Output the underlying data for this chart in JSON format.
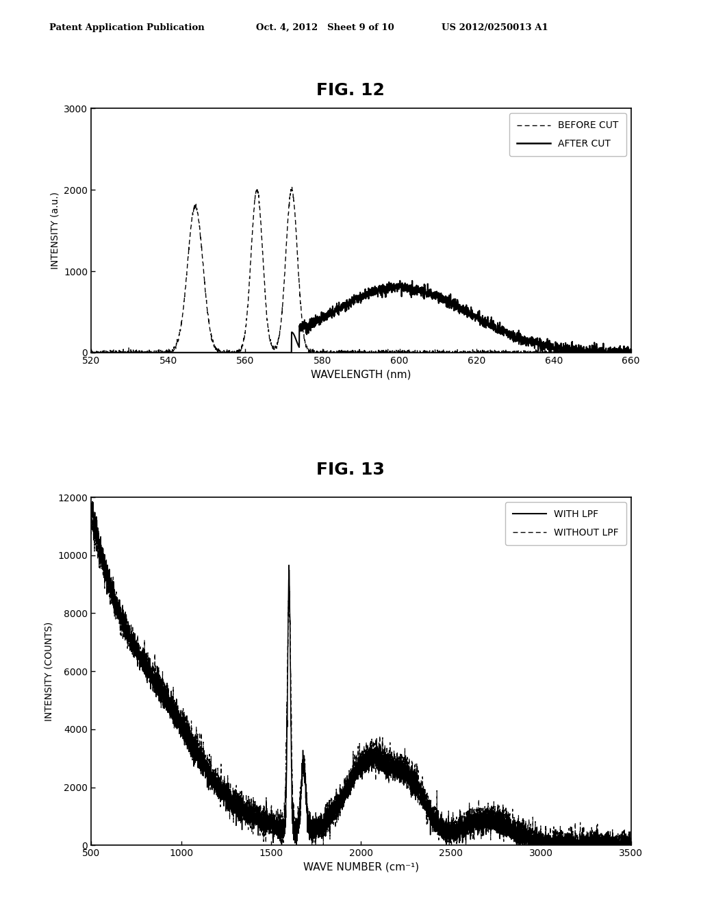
{
  "fig12_title": "FIG. 12",
  "fig13_title": "FIG. 13",
  "header_left": "Patent Application Publication",
  "header_mid": "Oct. 4, 2012   Sheet 9 of 10",
  "header_right": "US 2012/0250013 A1",
  "fig12": {
    "xlim": [
      520,
      660
    ],
    "ylim": [
      0,
      3000
    ],
    "xticks": [
      520,
      540,
      560,
      580,
      600,
      620,
      640,
      660
    ],
    "yticks": [
      0,
      1000,
      2000,
      3000
    ],
    "xlabel": "WAVELENGTH (nm)",
    "ylabel": "INTENSITY (a.u.)",
    "legend_labels": [
      "BEFORE CUT",
      "AFTER CUT"
    ]
  },
  "fig13": {
    "xlim": [
      500,
      3500
    ],
    "ylim": [
      0,
      12000
    ],
    "xticks": [
      500,
      1000,
      1500,
      2000,
      2500,
      3000,
      3500
    ],
    "yticks": [
      0,
      2000,
      4000,
      6000,
      8000,
      10000,
      12000
    ],
    "xlabel": "WAVE NUMBER (cm⁻¹)",
    "ylabel": "INTENSITY (COUNTS)",
    "legend_labels": [
      "WITH LPF",
      "WITHOUT LPF"
    ]
  },
  "background_color": "#ffffff",
  "line_color": "#000000"
}
